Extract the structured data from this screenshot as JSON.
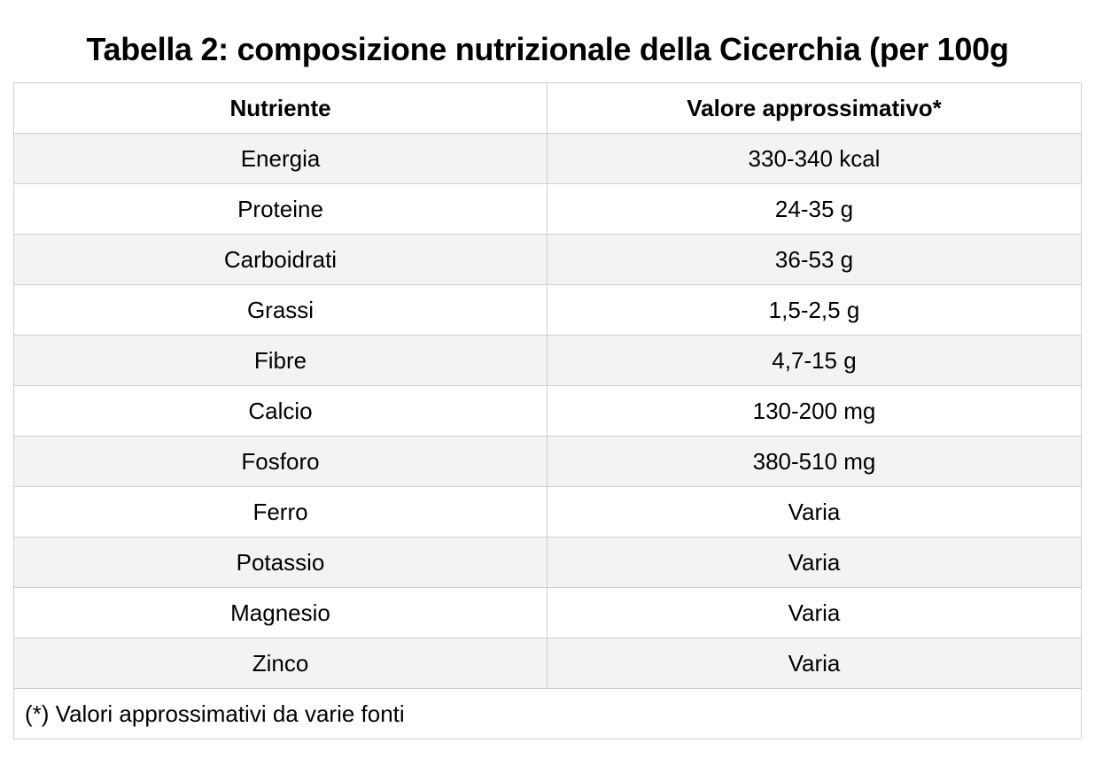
{
  "title": "Tabella 2: composizione nutrizionale della Cicerchia (per 100g",
  "table": {
    "headers": [
      "Nutriente",
      "Valore approssimativo*"
    ],
    "rows": [
      [
        "Energia",
        "330-340 kcal"
      ],
      [
        "Proteine",
        "24-35 g"
      ],
      [
        "Carboidrati",
        "36-53 g"
      ],
      [
        "Grassi",
        "1,5-2,5 g"
      ],
      [
        "Fibre",
        "4,7-15 g"
      ],
      [
        "Calcio",
        "130-200 mg"
      ],
      [
        "Fosforo",
        "380-510 mg"
      ],
      [
        "Ferro",
        "Varia"
      ],
      [
        "Potassio",
        "Varia"
      ],
      [
        "Magnesio",
        "Varia"
      ],
      [
        "Zinco",
        "Varia"
      ]
    ],
    "footnote": "(*) Valori approssimativi da varie fonti"
  },
  "colors": {
    "border": "#cfcfcf",
    "stripe": "#f3f3f3",
    "background": "#ffffff",
    "text": "#000000"
  }
}
